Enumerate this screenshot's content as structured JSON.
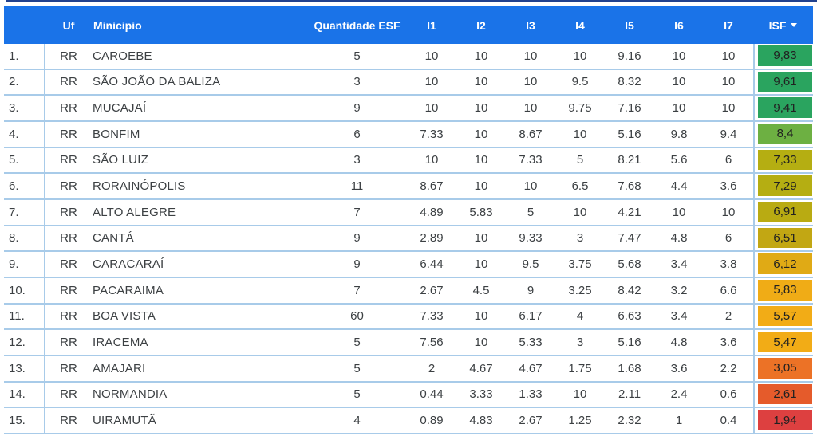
{
  "colors": {
    "top_divider": "#21418e",
    "header_bg": "#1a73e8",
    "header_text": "#ffffff",
    "row_separator": "#a8cbe9",
    "body_text": "#3c4043",
    "isf_text": "#212121"
  },
  "header": {
    "num": "",
    "uf": "Uf",
    "municipio": "Minicipio",
    "esf": "Quantidade ESF",
    "i1": "I1",
    "i2": "I2",
    "i3": "I3",
    "i4": "I4",
    "i5": "I5",
    "i6": "I6",
    "i7": "I7",
    "isf": "ISF",
    "isf_sort_icon": "caret-down"
  },
  "table": {
    "rows": [
      {
        "num": "1.",
        "uf": "RR",
        "municipio": "CAROEBE",
        "esf": "5",
        "i1": "10",
        "i2": "10",
        "i3": "10",
        "i4": "10",
        "i5": "9.16",
        "i6": "10",
        "i7": "10",
        "isf": "9,83",
        "isf_color": "#2aa45f"
      },
      {
        "num": "2.",
        "uf": "RR",
        "municipio": "SÃO JOÃO DA BALIZA",
        "esf": "3",
        "i1": "10",
        "i2": "10",
        "i3": "10",
        "i4": "9.5",
        "i5": "8.32",
        "i6": "10",
        "i7": "10",
        "isf": "9,61",
        "isf_color": "#2aa45f"
      },
      {
        "num": "3.",
        "uf": "RR",
        "municipio": "MUCAJAÍ",
        "esf": "9",
        "i1": "10",
        "i2": "10",
        "i3": "10",
        "i4": "9.75",
        "i5": "7.16",
        "i6": "10",
        "i7": "10",
        "isf": "9,41",
        "isf_color": "#2aa45f"
      },
      {
        "num": "4.",
        "uf": "RR",
        "municipio": "BONFIM",
        "esf": "6",
        "i1": "7.33",
        "i2": "10",
        "i3": "8.67",
        "i4": "10",
        "i5": "5.16",
        "i6": "9.8",
        "i7": "9.4",
        "isf": "8,4",
        "isf_color": "#6db042"
      },
      {
        "num": "5.",
        "uf": "RR",
        "municipio": "SÃO LUIZ",
        "esf": "3",
        "i1": "10",
        "i2": "10",
        "i3": "7.33",
        "i4": "5",
        "i5": "8.21",
        "i6": "5.6",
        "i7": "6",
        "isf": "7,33",
        "isf_color": "#b5ae12"
      },
      {
        "num": "6.",
        "uf": "RR",
        "municipio": "RORAINÓPOLIS",
        "esf": "11",
        "i1": "8.67",
        "i2": "10",
        "i3": "10",
        "i4": "6.5",
        "i5": "7.68",
        "i6": "4.4",
        "i7": "3.6",
        "isf": "7,29",
        "isf_color": "#b5ae12"
      },
      {
        "num": "7.",
        "uf": "RR",
        "municipio": "ALTO ALEGRE",
        "esf": "7",
        "i1": "4.89",
        "i2": "5.83",
        "i3": "5",
        "i4": "10",
        "i5": "4.21",
        "i6": "10",
        "i7": "10",
        "isf": "6,91",
        "isf_color": "#b9ab12"
      },
      {
        "num": "8.",
        "uf": "RR",
        "municipio": "CANTÁ",
        "esf": "9",
        "i1": "2.89",
        "i2": "10",
        "i3": "9.33",
        "i4": "3",
        "i5": "7.47",
        "i6": "4.8",
        "i7": "6",
        "isf": "6,51",
        "isf_color": "#c2a713"
      },
      {
        "num": "9.",
        "uf": "RR",
        "municipio": "CARACARAÍ",
        "esf": "9",
        "i1": "6.44",
        "i2": "10",
        "i3": "9.5",
        "i4": "3.75",
        "i5": "5.68",
        "i6": "3.4",
        "i7": "3.8",
        "isf": "6,12",
        "isf_color": "#e0aa15"
      },
      {
        "num": "10.",
        "uf": "RR",
        "municipio": "PACARAIMA",
        "esf": "7",
        "i1": "2.67",
        "i2": "4.5",
        "i3": "9",
        "i4": "3.25",
        "i5": "8.42",
        "i6": "3.2",
        "i7": "6.6",
        "isf": "5,83",
        "isf_color": "#f0ac16"
      },
      {
        "num": "11.",
        "uf": "RR",
        "municipio": "BOA VISTA",
        "esf": "60",
        "i1": "7.33",
        "i2": "10",
        "i3": "6.17",
        "i4": "4",
        "i5": "6.63",
        "i6": "3.4",
        "i7": "2",
        "isf": "5,57",
        "isf_color": "#f2ac16"
      },
      {
        "num": "12.",
        "uf": "RR",
        "municipio": "IRACEMA",
        "esf": "5",
        "i1": "7.56",
        "i2": "10",
        "i3": "5.33",
        "i4": "3",
        "i5": "5.16",
        "i6": "4.8",
        "i7": "3.6",
        "isf": "5,47",
        "isf_color": "#f2ac16"
      },
      {
        "num": "13.",
        "uf": "RR",
        "municipio": "AMAJARI",
        "esf": "5",
        "i1": "2",
        "i2": "4.67",
        "i3": "4.67",
        "i4": "1.75",
        "i5": "1.68",
        "i6": "3.6",
        "i7": "2.2",
        "isf": "3,05",
        "isf_color": "#ec7226"
      },
      {
        "num": "14.",
        "uf": "RR",
        "municipio": "NORMANDIA",
        "esf": "5",
        "i1": "0.44",
        "i2": "3.33",
        "i3": "1.33",
        "i4": "10",
        "i5": "2.11",
        "i6": "2.4",
        "i7": "0.6",
        "isf": "2,61",
        "isf_color": "#e55b2b"
      },
      {
        "num": "15.",
        "uf": "RR",
        "municipio": "UIRAMUTÃ",
        "esf": "4",
        "i1": "0.89",
        "i2": "4.83",
        "i3": "2.67",
        "i4": "1.25",
        "i5": "2.32",
        "i6": "1",
        "i7": "0.4",
        "isf": "1,94",
        "isf_color": "#dd4040"
      }
    ]
  }
}
